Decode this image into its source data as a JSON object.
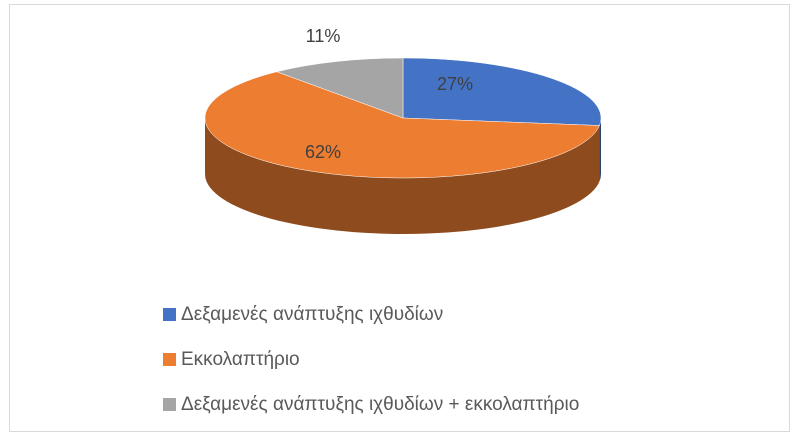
{
  "chart_data": {
    "type": "pie3d",
    "categories": [
      "Δεξαμενές ανάπτυξης ιχθυδίων",
      "Εκκολαπτήριο",
      "Δεξαμενές ανάπτυξης ιχθυδίων + εκκολαπτήριο"
    ],
    "values": [
      27,
      62,
      11
    ],
    "value_labels": [
      "27%",
      "62%",
      "11%"
    ],
    "colors": [
      "#4472c4",
      "#ed7d31",
      "#a5a5a5"
    ],
    "legend": "bottom"
  }
}
